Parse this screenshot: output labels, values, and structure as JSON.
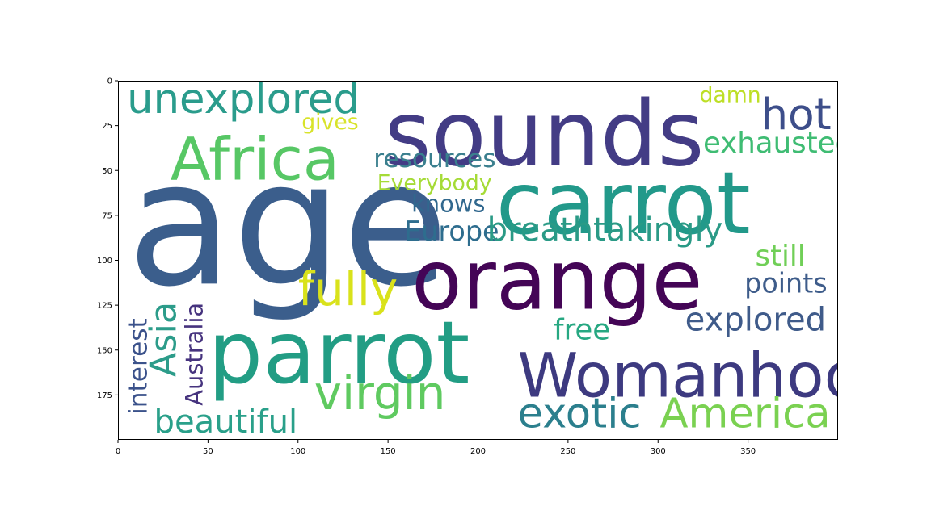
{
  "chart_data": {
    "type": "wordcloud",
    "image_width": 400,
    "image_height": 200,
    "xlim": [
      0,
      400
    ],
    "ylim": [
      200,
      0
    ],
    "xticks": [
      0,
      50,
      100,
      150,
      200,
      250,
      300,
      350
    ],
    "yticks": [
      0,
      25,
      50,
      75,
      100,
      125,
      150,
      175
    ],
    "grid": false,
    "words": [
      {
        "text": "age",
        "x": 5,
        "y": 113,
        "size": 96,
        "rotate": 0,
        "color": "#3b5e8c"
      },
      {
        "text": "sounds",
        "x": 148,
        "y": 47,
        "size": 50,
        "rotate": 0,
        "color": "#433c85"
      },
      {
        "text": "carrot",
        "x": 210,
        "y": 85,
        "size": 48,
        "rotate": 0,
        "color": "#22998a"
      },
      {
        "text": "orange",
        "x": 163,
        "y": 127,
        "size": 46,
        "rotate": 0,
        "color": "#440556"
      },
      {
        "text": "parrot",
        "x": 50,
        "y": 168,
        "size": 48,
        "rotate": 0,
        "color": "#229d84"
      },
      {
        "text": "Africa",
        "x": 29,
        "y": 55,
        "size": 33,
        "rotate": 0,
        "color": "#57c765"
      },
      {
        "text": "unexplored",
        "x": 5,
        "y": 18,
        "size": 23,
        "rotate": 0,
        "color": "#2a9c8c"
      },
      {
        "text": "hot",
        "x": 357,
        "y": 27,
        "size": 24,
        "rotate": 0,
        "color": "#3d4e8a"
      },
      {
        "text": "damn",
        "x": 323,
        "y": 12,
        "size": 12,
        "rotate": 0,
        "color": "#bddf26"
      },
      {
        "text": "gives",
        "x": 102,
        "y": 27,
        "size": 12,
        "rotate": 0,
        "color": "#d8e32a"
      },
      {
        "text": "exhausted",
        "x": 325,
        "y": 40,
        "size": 16,
        "rotate": 0,
        "color": "#3fbc73"
      },
      {
        "text": "resources",
        "x": 142,
        "y": 48,
        "size": 14,
        "rotate": 0,
        "color": "#3a7f8e"
      },
      {
        "text": "Everybody",
        "x": 144,
        "y": 61,
        "size": 12,
        "rotate": 0,
        "color": "#a5db36"
      },
      {
        "text": "knows",
        "x": 163,
        "y": 73,
        "size": 13,
        "rotate": 0,
        "color": "#31688e"
      },
      {
        "text": "Europe",
        "x": 159,
        "y": 89,
        "size": 15,
        "rotate": 0,
        "color": "#2e6d8e"
      },
      {
        "text": "breathtakingly",
        "x": 205,
        "y": 89,
        "size": 18,
        "rotate": 0,
        "color": "#2a9a86"
      },
      {
        "text": "still",
        "x": 354,
        "y": 103,
        "size": 16,
        "rotate": 0,
        "color": "#70cf57"
      },
      {
        "text": "fully",
        "x": 100,
        "y": 125,
        "size": 26,
        "rotate": 0,
        "color": "#d9e21b"
      },
      {
        "text": "points",
        "x": 348,
        "y": 118,
        "size": 15,
        "rotate": 0,
        "color": "#3e5c8a"
      },
      {
        "text": "explored",
        "x": 315,
        "y": 139,
        "size": 18,
        "rotate": 0,
        "color": "#3f5b8a"
      },
      {
        "text": "free",
        "x": 242,
        "y": 144,
        "size": 16,
        "rotate": 0,
        "color": "#27a882"
      },
      {
        "text": "Womanhood",
        "x": 222,
        "y": 176,
        "size": 34,
        "rotate": 0,
        "color": "#3d3a80"
      },
      {
        "text": "virgin",
        "x": 109,
        "y": 183,
        "size": 26,
        "rotate": 0,
        "color": "#5fca60"
      },
      {
        "text": "exotic",
        "x": 222,
        "y": 193,
        "size": 23,
        "rotate": 0,
        "color": "#2b7f8d"
      },
      {
        "text": "America",
        "x": 301,
        "y": 193,
        "size": 23,
        "rotate": 0,
        "color": "#7ad151"
      },
      {
        "text": "beautiful",
        "x": 20,
        "y": 196,
        "size": 18,
        "rotate": 0,
        "color": "#2aa08a"
      },
      {
        "text": "interest",
        "x": 16,
        "y": 186,
        "size": 14,
        "rotate": -90,
        "color": "#3b528b"
      },
      {
        "text": "Asia",
        "x": 32,
        "y": 165,
        "size": 20,
        "rotate": -90,
        "color": "#2c9c8a"
      },
      {
        "text": "Australia",
        "x": 47,
        "y": 181,
        "size": 13,
        "rotate": -90,
        "color": "#46337e"
      }
    ]
  }
}
